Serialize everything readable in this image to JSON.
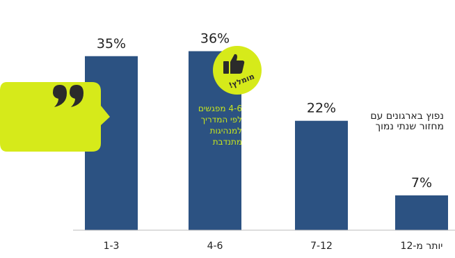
{
  "chart_data": {
    "type": "bar",
    "categories": [
      "1-3",
      "4-6",
      "7-12",
      "יותר מ-12"
    ],
    "values": [
      35,
      36,
      22,
      7
    ],
    "value_labels": [
      "35%",
      "36%",
      "22%",
      "7%"
    ],
    "ylim": [
      0,
      40
    ],
    "grid": false,
    "legend": "none",
    "colors": {
      "bar": "#2c5282",
      "accent": "#d6ea1a",
      "note_text": "#c8e61e"
    }
  },
  "callout": {
    "text": "נפוץ בארגונים עם מחזור שנתי נמוך",
    "icon": "quote-icon"
  },
  "highlight": {
    "badge_text": "מומלץ!",
    "badge_icon": "thumbs-up-icon",
    "note": "4-6 מפגשים לפי המדריך למנהיגות מתנדבת"
  }
}
